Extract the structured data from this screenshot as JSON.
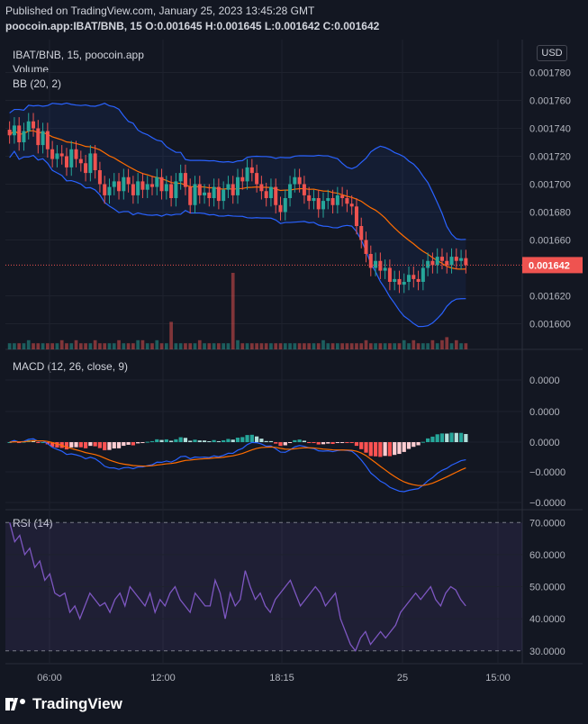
{
  "header": {
    "published": "Published on TradingView.com, January 25, 2023 13:45:28 GMT",
    "ohlc": "poocoin.app:IBAT/BNB, 15  O:0.001645  H:0.001645  L:0.001642  C:0.001642"
  },
  "currency_button": "USD",
  "branding": "TradingView",
  "colors": {
    "bg": "#131722",
    "up": "#26a69a",
    "down": "#ef5350",
    "bb": "#2962ff",
    "bb_basis": "#ff6d00",
    "macd": "#2962ff",
    "signal": "#ff6d00",
    "rsi": "#7e57c2"
  },
  "chart_data": [
    {
      "type": "candlestick",
      "legend": [
        "IBAT/BNB, 15, poocoin.app",
        "Volume",
        "BB (20, 2)"
      ],
      "y_ticks": [
        "0.001780",
        "0.001760",
        "0.001740",
        "0.001720",
        "0.001700",
        "0.001680",
        "0.001660",
        "0.001640",
        "0.001620",
        "0.001600"
      ],
      "ylim": [
        0.00159,
        0.00179
      ],
      "last_price": "0.001642",
      "x_ticks": [
        "06:00",
        "12:00",
        "18:15",
        "25",
        "15:00"
      ],
      "close": [
        0.001735,
        0.001742,
        0.00173,
        0.001738,
        0.001745,
        0.00174,
        0.001728,
        0.001738,
        0.001725,
        0.001718,
        0.001722,
        0.00172,
        0.001712,
        0.001725,
        0.001718,
        0.001715,
        0.001708,
        0.001722,
        0.00171,
        0.0017,
        0.001692,
        0.001698,
        0.001702,
        0.001695,
        0.001705,
        0.0017,
        0.001692,
        0.001702,
        0.001696,
        0.0017,
        0.001698,
        0.001705,
        0.001695,
        0.0017,
        0.00169,
        0.001702,
        0.001708,
        0.001698,
        0.001685,
        0.0017,
        0.001692,
        0.001694,
        0.00169,
        0.001698,
        0.001688,
        0.001696,
        0.0017,
        0.001692,
        0.001705,
        0.001702,
        0.001712,
        0.001708,
        0.0017,
        0.001695,
        0.00169,
        0.001698,
        0.001685,
        0.00168,
        0.00169,
        0.0017,
        0.001705,
        0.0017,
        0.001692,
        0.001688,
        0.00169,
        0.001682,
        0.001688,
        0.00169,
        0.001685,
        0.001692,
        0.00169,
        0.001686,
        0.001684,
        0.00167,
        0.00166,
        0.00165,
        0.00164,
        0.001645,
        0.001638,
        0.00164,
        0.00163,
        0.001632,
        0.001628,
        0.00163,
        0.001635,
        0.001632,
        0.00163,
        0.00164,
        0.001645,
        0.001642,
        0.001648,
        0.001645,
        0.001642,
        0.001648,
        0.001645,
        0.001647,
        0.001642
      ],
      "volume_note": "volume bars shown as relative heights",
      "volume": [
        2,
        2,
        2,
        2,
        3,
        2,
        2,
        2,
        2,
        2,
        2,
        3,
        2,
        2,
        3,
        2,
        2,
        2,
        3,
        2,
        2,
        2,
        2,
        3,
        2,
        2,
        2,
        3,
        3,
        2,
        2,
        3,
        2,
        2,
        9,
        2,
        2,
        2,
        2,
        2,
        3,
        2,
        2,
        2,
        2,
        2,
        2,
        25,
        3,
        2,
        2,
        2,
        2,
        2,
        2,
        2,
        2,
        2,
        2,
        2,
        2,
        2,
        2,
        2,
        2,
        2,
        3,
        2,
        2,
        2,
        2,
        2,
        2,
        2,
        2,
        3,
        2,
        2,
        2,
        2,
        2,
        2,
        2,
        3,
        2,
        3,
        2,
        2,
        2,
        3,
        2,
        3,
        4,
        2,
        3,
        2,
        2
      ]
    },
    {
      "type": "line",
      "legend": [
        "MACD (12, 26, close, 9)"
      ],
      "y_ticks": [
        "0.0000",
        "0.0000",
        "0.0000",
        "−0.0000",
        "−0.0000"
      ]
    },
    {
      "type": "line",
      "legend": [
        "RSI (14)"
      ],
      "y_ticks": [
        "70.0000",
        "60.0000",
        "50.0000",
        "40.0000",
        "30.0000"
      ],
      "ylim": [
        26,
        74
      ],
      "bands": [
        30,
        70
      ],
      "rsi": [
        70,
        64,
        66,
        60,
        62,
        56,
        58,
        52,
        54,
        48,
        47,
        48,
        42,
        44,
        40,
        44,
        48,
        46,
        44,
        45,
        42,
        46,
        48,
        44,
        50,
        48,
        46,
        44,
        48,
        42,
        46,
        44,
        48,
        50,
        46,
        44,
        42,
        48,
        46,
        44,
        44,
        52,
        48,
        40,
        48,
        44,
        46,
        55,
        50,
        46,
        48,
        44,
        42,
        46,
        48,
        50,
        52,
        48,
        44,
        46,
        48,
        50,
        48,
        44,
        46,
        48,
        40,
        36,
        32,
        30,
        34,
        36,
        32,
        34,
        36,
        34,
        36,
        38,
        42,
        44,
        46,
        48,
        46,
        48,
        50,
        46,
        44,
        48,
        50,
        49,
        46,
        44
      ]
    }
  ]
}
